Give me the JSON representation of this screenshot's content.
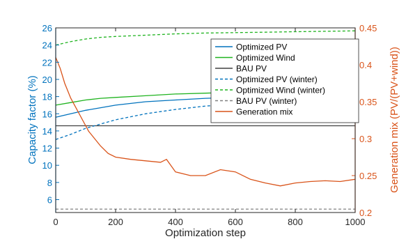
{
  "chart_data": {
    "type": "line",
    "title": "",
    "xlabel": "Optimization step",
    "ylabel_left": "Capacity factor (%)",
    "ylabel_right": "Generation mix (PV/(PV+wind))",
    "xlim": [
      0,
      1000
    ],
    "ylim_left": [
      4.5,
      26
    ],
    "ylim_right": [
      0.2,
      0.45
    ],
    "x_ticks": [
      "0",
      "200",
      "400",
      "600",
      "800",
      "1000"
    ],
    "y_ticks_left": [
      "6",
      "8",
      "10",
      "12",
      "14",
      "16",
      "18",
      "20",
      "22",
      "24",
      "26"
    ],
    "y_ticks_right": [
      "0.2",
      "0.25",
      "0.3",
      "0.35",
      "0.4",
      "0.45"
    ],
    "grid": false,
    "legend_position": "top-right",
    "colors": {
      "left_axis": "#0072BD",
      "right_axis": "#D95319",
      "pv": "#0072BD",
      "wind": "#1FB31F",
      "bau": "#404040",
      "bau_winter": "#808080",
      "mix": "#D95319"
    },
    "series": [
      {
        "name": "Optimized PV",
        "axis": "left",
        "style": "solid",
        "color_key": "pv",
        "x": [
          0,
          50,
          100,
          150,
          200,
          300,
          400,
          500,
          600,
          700,
          800,
          900,
          1000
        ],
        "y": [
          15.6,
          16.0,
          16.4,
          16.7,
          17.0,
          17.4,
          17.6,
          17.8,
          17.9,
          18.0,
          18.1,
          18.2,
          18.3
        ]
      },
      {
        "name": "Optimized Wind",
        "axis": "left",
        "style": "solid",
        "color_key": "wind",
        "x": [
          0,
          50,
          100,
          150,
          200,
          300,
          400,
          500,
          600,
          700,
          800,
          900,
          1000
        ],
        "y": [
          17.0,
          17.3,
          17.6,
          17.8,
          17.9,
          18.1,
          18.3,
          18.4,
          18.5,
          18.55,
          18.6,
          18.65,
          18.7
        ]
      },
      {
        "name": "BAU PV",
        "axis": "left",
        "style": "solid",
        "color_key": "bau",
        "x": [
          0,
          1000
        ],
        "y": [
          14.6,
          14.6
        ]
      },
      {
        "name": "Optimized PV (winter)",
        "axis": "left",
        "style": "dashed",
        "color_key": "pv",
        "x": [
          0,
          50,
          100,
          150,
          200,
          300,
          400,
          500,
          600,
          700,
          800,
          900,
          1000
        ],
        "y": [
          13.0,
          13.6,
          14.3,
          14.8,
          15.3,
          16.0,
          16.5,
          16.9,
          17.1,
          17.3,
          17.4,
          17.5,
          17.5
        ]
      },
      {
        "name": "Optimized Wind (winter)",
        "axis": "left",
        "style": "dashed",
        "color_key": "wind",
        "x": [
          0,
          50,
          100,
          150,
          200,
          300,
          400,
          500,
          600,
          700,
          800,
          900,
          1000
        ],
        "y": [
          24.0,
          24.4,
          24.7,
          24.9,
          25.0,
          25.15,
          25.3,
          25.4,
          25.45,
          25.5,
          25.55,
          25.6,
          25.65
        ]
      },
      {
        "name": "BAU PV (winter)",
        "axis": "left",
        "style": "dashed",
        "color_key": "bau_winter",
        "x": [
          0,
          1000
        ],
        "y": [
          4.9,
          4.9
        ]
      },
      {
        "name": "Generation mix",
        "axis": "right",
        "style": "solid",
        "color_key": "mix",
        "x": [
          0,
          15,
          30,
          50,
          70,
          90,
          110,
          130,
          150,
          175,
          200,
          250,
          300,
          350,
          370,
          400,
          450,
          500,
          550,
          600,
          650,
          700,
          750,
          800,
          850,
          900,
          950,
          1000
        ],
        "y": [
          0.41,
          0.395,
          0.375,
          0.355,
          0.34,
          0.325,
          0.31,
          0.3,
          0.29,
          0.28,
          0.275,
          0.272,
          0.27,
          0.268,
          0.272,
          0.255,
          0.25,
          0.25,
          0.258,
          0.255,
          0.245,
          0.24,
          0.236,
          0.24,
          0.242,
          0.243,
          0.242,
          0.245
        ]
      }
    ]
  }
}
